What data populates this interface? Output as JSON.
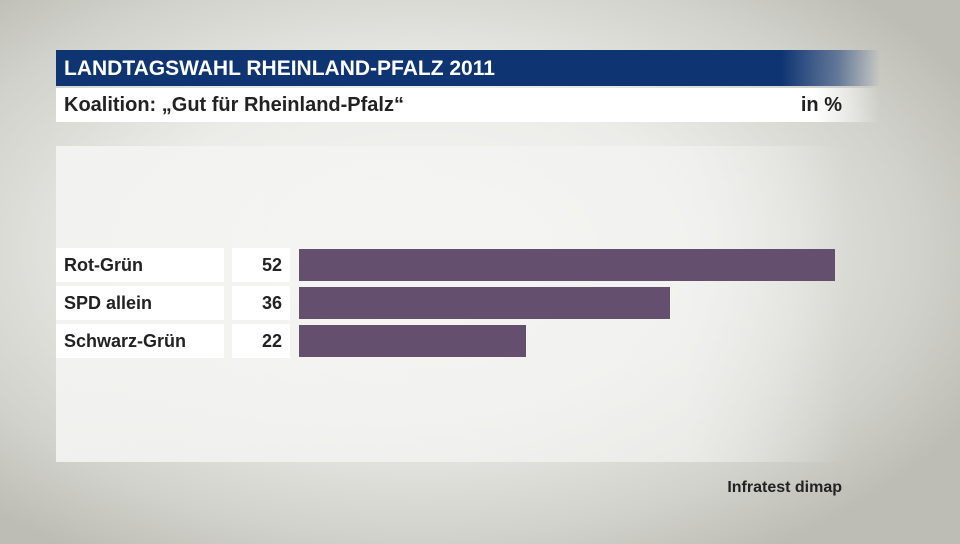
{
  "header": {
    "title": "LANDTAGSWAHL RHEINLAND-PFALZ 2011",
    "subtitle": "Koalition: „Gut für Rheinland-Pfalz“",
    "unit": "in %"
  },
  "source": "Infratest dimap",
  "colors": {
    "header_band": "#0f3472",
    "bar": "#64506e",
    "label_box": "#ffffff"
  },
  "chart_data": {
    "type": "bar",
    "orientation": "horizontal",
    "title": "Koalition: „Gut für Rheinland-Pfalz“",
    "unit": "in %",
    "categories": [
      "Rot-Grün",
      "SPD allein",
      "Schwarz-Grün"
    ],
    "values": [
      52,
      36,
      22
    ],
    "xlim": [
      0,
      52
    ],
    "grid": false,
    "legend": "none",
    "data_labels": true
  }
}
